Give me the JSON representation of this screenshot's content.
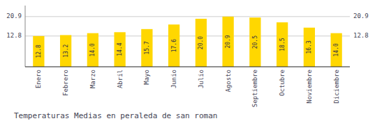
{
  "chart_data": {
    "type": "bar",
    "title": "Temperaturas Medias en peraleda de san roman",
    "categories": [
      "Enero",
      "Febrero",
      "Marzo",
      "Abril",
      "Mayo",
      "Junio",
      "Julio",
      "Agosto",
      "Septiembre",
      "Octubre",
      "Noviembre",
      "Diciembre"
    ],
    "values": [
      12.8,
      13.2,
      14.0,
      14.4,
      15.7,
      17.6,
      20.0,
      20.9,
      20.5,
      18.5,
      16.3,
      14.0
    ],
    "value_labels": [
      "12.8",
      "13.2",
      "14.0",
      "14.4",
      "15.7",
      "17.6",
      "20.0",
      "20.9",
      "20.5",
      "18.5",
      "16.3",
      "14.0"
    ],
    "color": "#FFD700",
    "ylim": [
      0,
      25.498
    ],
    "yticks": [
      12.8,
      20.9
    ],
    "grid": true,
    "data_labels": true
  }
}
